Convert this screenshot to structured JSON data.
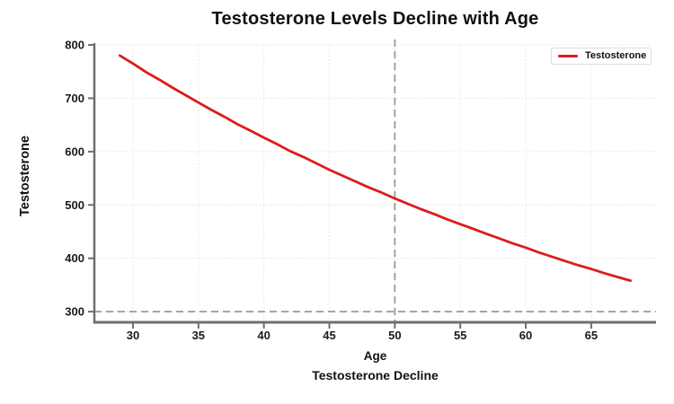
{
  "chart_data": {
    "type": "line",
    "title": "Testosterone Levels Decline with Age",
    "xlabel": "Age",
    "ylabel": "Testosterone",
    "caption": "Testosterone Decline",
    "x": [
      29,
      30,
      31,
      32,
      33,
      34,
      35,
      36,
      37,
      38,
      39,
      40,
      41,
      42,
      43,
      44,
      45,
      46,
      47,
      48,
      49,
      50,
      51,
      52,
      53,
      54,
      55,
      56,
      57,
      58,
      59,
      60,
      61,
      62,
      63,
      64,
      65,
      66,
      67,
      68
    ],
    "series": [
      {
        "name": "Testosterone",
        "color": "#dd1c1c",
        "values": [
          780,
          765,
          749,
          735,
          720,
          706,
          692,
          678,
          665,
          651,
          639,
          626,
          614,
          601,
          590,
          578,
          566,
          555,
          544,
          533,
          523,
          512,
          502,
          492,
          483,
          473,
          464,
          455,
          446,
          437,
          428,
          420,
          411,
          403,
          395,
          387,
          380,
          372,
          365,
          358
        ]
      }
    ],
    "xticks": [
      30,
      35,
      40,
      45,
      50,
      55,
      60,
      65
    ],
    "yticks": [
      300,
      400,
      500,
      600,
      700,
      800
    ],
    "xlim": [
      27.05,
      69.95
    ],
    "ylim": [
      280,
      800
    ],
    "grid": "dotted",
    "reference_lines": [
      {
        "axis": "x",
        "value": 50,
        "style": "dashed",
        "color": "#999999"
      },
      {
        "axis": "y",
        "value": 300,
        "style": "dashed",
        "color": "#999999"
      }
    ],
    "legend": {
      "position": "top-right",
      "entries": [
        {
          "label": "Testosterone",
          "color": "#dd1c1c"
        }
      ]
    }
  }
}
